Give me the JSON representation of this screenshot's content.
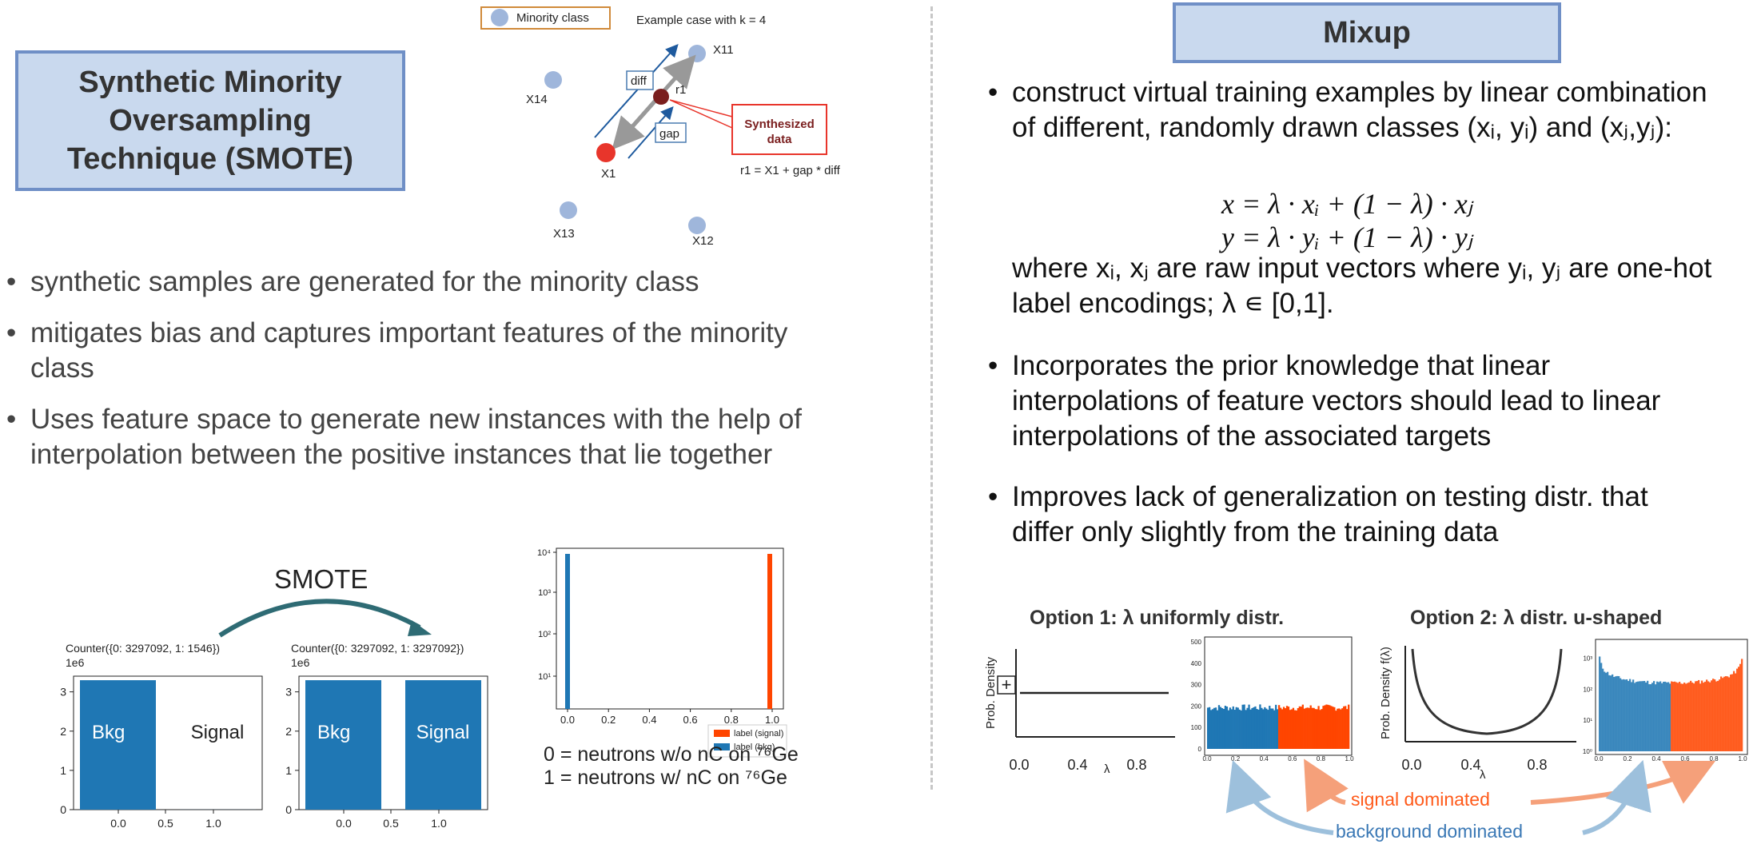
{
  "left": {
    "title": "Synthetic Minority Oversampling Technique (SMOTE)",
    "title_lines": [
      "Synthetic Minority",
      "Oversampling",
      "Technique (SMOTE)"
    ],
    "diagram": {
      "legend": "Minority class",
      "example": "Example case with k = 4",
      "points": [
        "X11",
        "X14",
        "r1",
        "X1",
        "X13",
        "X12"
      ],
      "diff": "diff",
      "gap": "gap",
      "synth": [
        "Synthesized",
        "data"
      ],
      "formula": "r1 = X1 + gap * diff"
    },
    "bullets": [
      "synthetic samples are generated for the minority class",
      "mitigates bias and captures important features of the minority class",
      "Uses feature space to generate new instances with the help of interpolation between the positive instances that lie together"
    ],
    "smote_label": "SMOTE",
    "chart_before": {
      "counter": "Counter({0: 3297092, 1: 1546})",
      "scale": "1e6",
      "bkg": "Bkg",
      "signal": "Signal"
    },
    "chart_after": {
      "counter": "Counter({0: 3297092, 1: 3297092})",
      "scale": "1e6",
      "bkg": "Bkg",
      "signal": "Signal"
    },
    "notes": [
      "0 = neutrons w/o nC on ⁷⁶Ge",
      "1 = neutrons w/ nC on ⁷⁶Ge"
    ]
  },
  "right": {
    "title": "Mixup",
    "bullet1": "construct virtual training examples by linear combination of different, randomly drawn classes (xᵢ, yᵢ) and (xⱼ,yⱼ):",
    "bullet1_lines": [
      "construct virtual training examples by linear combination",
      "of different, randomly drawn classes (xᵢ, yᵢ) and (xⱼ,yⱼ):"
    ],
    "formula_x": "x = λ · xᵢ + (1 − λ) · xⱼ",
    "formula_y": "y = λ · yᵢ + (1 − λ) · yⱼ",
    "where_lines": [
      "where xᵢ, xⱼ are raw input vectors where yᵢ, yⱼ are one-hot",
      "label encodings; λ ∊ [0,1]."
    ],
    "bullet2_lines": [
      "Incorporates the prior knowledge that linear",
      "interpolations of feature vectors should lead to linear",
      "interpolations of the associated targets"
    ],
    "bullet3_lines": [
      "Improves lack of  generalization on testing distr. that",
      "differ only slightly from the training data"
    ],
    "option1": "Option 1: λ uniformly distr.",
    "option2": "Option 2: λ distr. u-shaped",
    "prob_density": "Prob. Density",
    "prob_density_f": "Prob. Density f(λ)",
    "lambda": "λ",
    "signal_dominated": "signal dominated",
    "background_dominated": "background dominated"
  },
  "colors": {
    "blue": "#1f77b4",
    "orange": "#ff4500",
    "title_fill": "#c9d9ee",
    "title_border": "#6f8fc6",
    "arrow_teal": "#2e6b74",
    "dark_red": "#7a1e1e",
    "red_point": "#e8352b",
    "point_blue": "#9fb6db"
  },
  "chart_data": [
    {
      "type": "bar",
      "title": "Counter({0: 3297092, 1: 1546})",
      "categories": [
        "0",
        "1"
      ],
      "values": [
        3.297092,
        0.001546
      ],
      "x_ticks": [
        "0.0",
        "0.5",
        "1.0"
      ],
      "y_ticks": [
        "0",
        "1",
        "2",
        "3"
      ],
      "ylabel": "1e6",
      "ylim": [
        0,
        3.4
      ],
      "labels": [
        "Bkg",
        "Signal"
      ]
    },
    {
      "type": "bar",
      "title": "Counter({0: 3297092, 1: 3297092})",
      "categories": [
        "0",
        "1"
      ],
      "values": [
        3.297092,
        3.297092
      ],
      "x_ticks": [
        "0.0",
        "0.5",
        "1.0"
      ],
      "y_ticks": [
        "0",
        "1",
        "2",
        "3"
      ],
      "ylabel": "1e6",
      "ylim": [
        0,
        3.4
      ],
      "labels": [
        "Bkg",
        "Signal"
      ]
    },
    {
      "type": "bar",
      "series": [
        {
          "name": "label (signal)",
          "x": 1.0,
          "value": 8000
        },
        {
          "name": "label (bkg)",
          "x": 0.0,
          "value": 8000
        }
      ],
      "x_ticks": [
        "0.0",
        "0.2",
        "0.4",
        "0.6",
        "0.8",
        "1.0"
      ],
      "y_ticks": [
        "10¹",
        "10²",
        "10³",
        "10⁴"
      ],
      "y_scale": "log",
      "legend": "bottom-right"
    },
    {
      "type": "line",
      "xlabel": "λ",
      "ylabel": "Prob. Density",
      "x_ticks": [
        "0.0",
        "0.4",
        "0.8"
      ],
      "shape": "uniform"
    },
    {
      "type": "bar",
      "y_ticks": [
        "0",
        "100",
        "200",
        "300",
        "400",
        "500"
      ],
      "x_ticks": [
        "0.0",
        "0.2",
        "0.4",
        "0.6",
        "0.8",
        "1.0"
      ],
      "shape": "uniform histogram",
      "level": 190
    },
    {
      "type": "line",
      "xlabel": "λ",
      "ylabel": "Prob. Density f(λ)",
      "x_ticks": [
        "0.0",
        "0.4",
        "0.8"
      ],
      "shape": "u-shaped"
    },
    {
      "type": "bar",
      "y_ticks": [
        "10⁰",
        "10¹",
        "10²",
        "10³"
      ],
      "x_ticks": [
        "0.0",
        "0.2",
        "0.4",
        "0.6",
        "0.8",
        "1.0"
      ],
      "y_scale": "log",
      "shape": "u-shaped histogram"
    }
  ]
}
